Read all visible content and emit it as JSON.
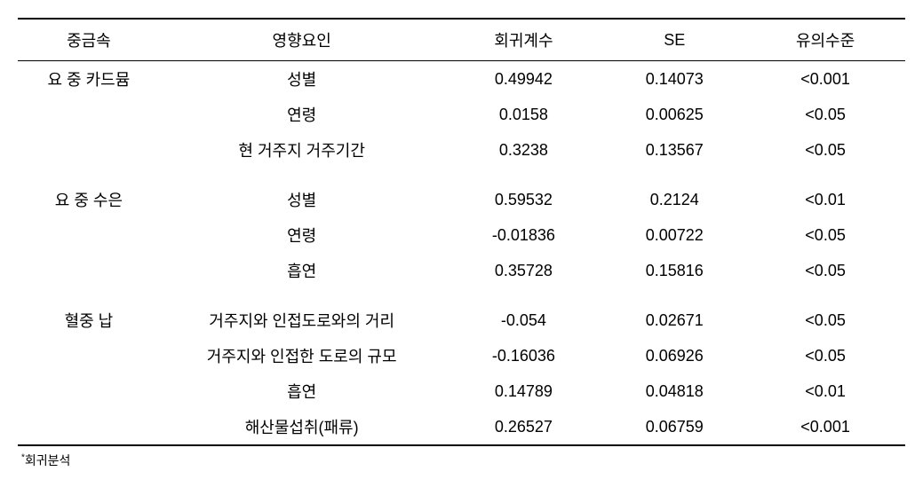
{
  "table": {
    "headers": {
      "metal": "중금속",
      "factor": "영향요인",
      "coefficient": "회귀계수",
      "se": "SE",
      "significance": "유의수준"
    },
    "groups": [
      {
        "metal": "요 중 카드뮴",
        "rows": [
          {
            "factor": "성별",
            "coef": "0.49942",
            "se": "0.14073",
            "sig": "<0.001"
          },
          {
            "factor": "연령",
            "coef": "0.0158",
            "se": "0.00625",
            "sig": "<0.05"
          },
          {
            "factor": "현 거주지 거주기간",
            "coef": "0.3238",
            "se": "0.13567",
            "sig": "<0.05"
          }
        ]
      },
      {
        "metal": "요 중 수은",
        "rows": [
          {
            "factor": "성별",
            "coef": "0.59532",
            "se": "0.2124",
            "sig": "<0.01"
          },
          {
            "factor": "연령",
            "coef": "-0.01836",
            "se": "0.00722",
            "sig": "<0.05"
          },
          {
            "factor": "흡연",
            "coef": "0.35728",
            "se": "0.15816",
            "sig": "<0.05"
          }
        ]
      },
      {
        "metal": "혈중 납",
        "rows": [
          {
            "factor": "거주지와 인접도로와의 거리",
            "coef": "-0.054",
            "se": "0.02671",
            "sig": "<0.05"
          },
          {
            "factor": "거주지와 인접한 도로의 규모",
            "coef": "-0.16036",
            "se": "0.06926",
            "sig": "<0.05"
          },
          {
            "factor": "흡연",
            "coef": "0.14789",
            "se": "0.04818",
            "sig": "<0.01"
          },
          {
            "factor": "해산물섭취(패류)",
            "coef": "0.26527",
            "se": "0.06759",
            "sig": "<0.001"
          }
        ]
      }
    ]
  },
  "footnote": {
    "marker": "*",
    "text": "회귀분석"
  },
  "styling": {
    "font_family": "Malgun Gothic",
    "header_fontsize": 18,
    "body_fontsize": 18,
    "footnote_fontsize": 14,
    "text_color": "#000000",
    "background_color": "#ffffff",
    "border_color": "#000000",
    "border_top_width": 2,
    "border_bottom_width": 2,
    "header_border_width": 1,
    "column_widths_pct": [
      16,
      32,
      18,
      16,
      18
    ],
    "column_alignment": [
      "center",
      "center",
      "center",
      "center",
      "center"
    ]
  }
}
